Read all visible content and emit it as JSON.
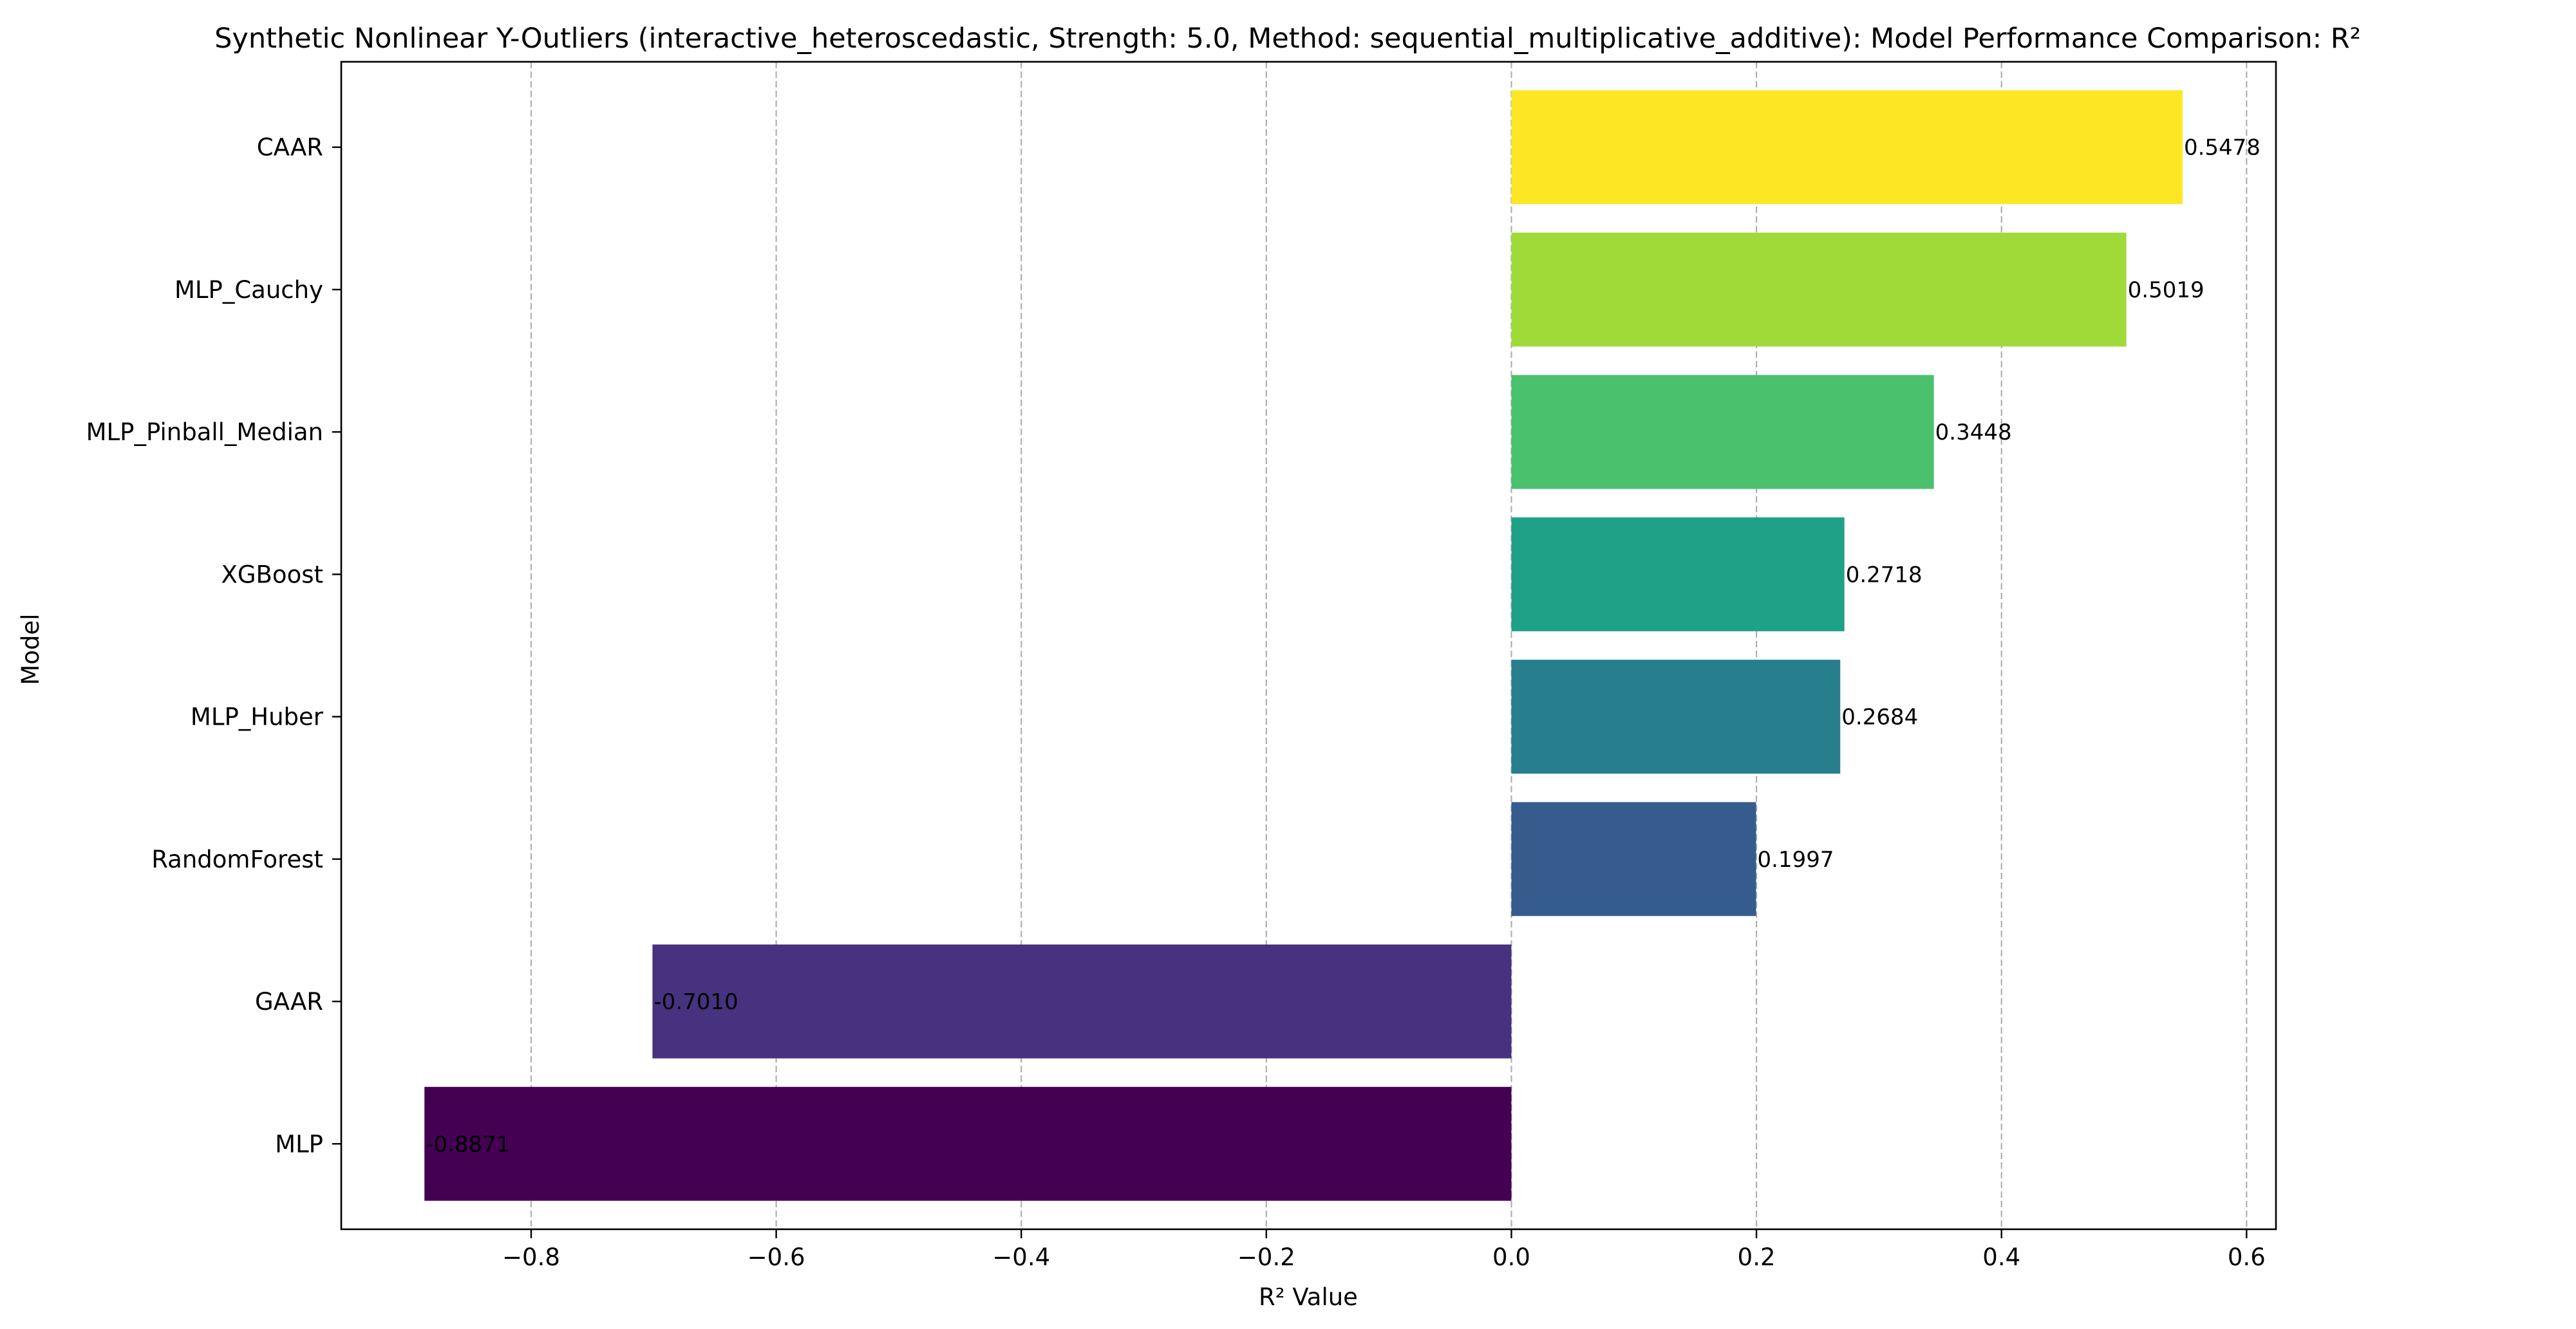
{
  "chart_data": {
    "type": "bar",
    "orientation": "horizontal",
    "title": "Synthetic Nonlinear Y-Outliers (interactive_heteroscedastic, Strength: 5.0, Method: sequential_multiplicative_additive): Model Performance Comparison: R²",
    "xlabel": "R² Value",
    "ylabel": "Model",
    "xlim": [
      -0.955,
      0.624
    ],
    "xticks": [
      -0.8,
      -0.6,
      -0.4,
      -0.2,
      0.0,
      0.2,
      0.4,
      0.6
    ],
    "xtick_labels": [
      "−0.8",
      "−0.6",
      "−0.4",
      "−0.2",
      "0.0",
      "0.2",
      "0.4",
      "0.6"
    ],
    "grid": "x-axis dashed",
    "categories": [
      "CAAR",
      "MLP_Cauchy",
      "MLP_Pinball_Median",
      "XGBoost",
      "MLP_Huber",
      "RandomForest",
      "GAAR",
      "MLP"
    ],
    "values": [
      0.5478,
      0.5019,
      0.3448,
      0.2718,
      0.2684,
      0.1997,
      -0.701,
      -0.8871
    ],
    "value_labels": [
      "0.5478",
      "0.5019",
      "0.3448",
      "0.2718",
      "0.2684",
      "0.1997",
      "-0.7010",
      "-0.8871"
    ],
    "colors": [
      "#fde725",
      "#a0da39",
      "#4ac16d",
      "#1fa187",
      "#277f8e",
      "#365c8d",
      "#46327e",
      "#440154"
    ]
  }
}
